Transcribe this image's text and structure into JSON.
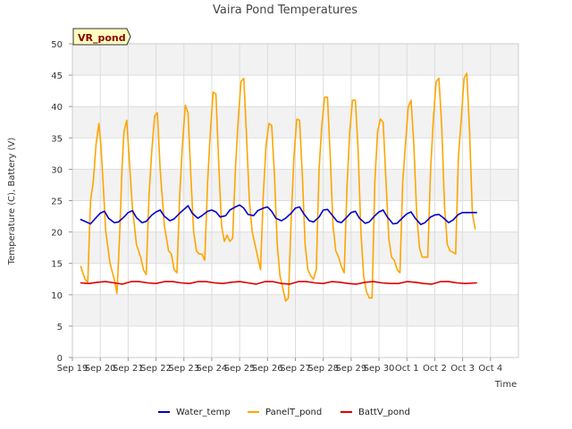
{
  "chart_data": {
    "type": "line",
    "title": "Vaira Pond Temperatures",
    "xlabel": "Time",
    "ylabel": "Temperature (C), Battery (V)",
    "site_label": "VR_pond",
    "ylim": [
      0,
      50
    ],
    "yticks": [
      0,
      5,
      10,
      15,
      20,
      25,
      30,
      35,
      40,
      45,
      50
    ],
    "xlim": [
      0,
      16
    ],
    "xticks": [
      {
        "pos": 0,
        "label": "Sep 19"
      },
      {
        "pos": 1,
        "label": "Sep 20"
      },
      {
        "pos": 2,
        "label": "Sep 21"
      },
      {
        "pos": 3,
        "label": "Sep 22"
      },
      {
        "pos": 4,
        "label": "Sep 23"
      },
      {
        "pos": 5,
        "label": "Sep 24"
      },
      {
        "pos": 6,
        "label": "Sep 25"
      },
      {
        "pos": 7,
        "label": "Sep 26"
      },
      {
        "pos": 8,
        "label": "Sep 27"
      },
      {
        "pos": 9,
        "label": "Sep 28"
      },
      {
        "pos": 10,
        "label": "Sep 29"
      },
      {
        "pos": 11,
        "label": "Sep 30"
      },
      {
        "pos": 12,
        "label": "Oct 1"
      },
      {
        "pos": 13,
        "label": "Oct 2"
      },
      {
        "pos": 14,
        "label": "Oct 3"
      },
      {
        "pos": 15,
        "label": "Oct 4"
      }
    ],
    "grid": true,
    "legend_position": "bottom",
    "series": [
      {
        "name": "Water_temp",
        "color": "#0000cc",
        "x": [
          0.3,
          0.5,
          0.65,
          0.85,
          1.0,
          1.15,
          1.3,
          1.5,
          1.65,
          1.85,
          2.0,
          2.15,
          2.3,
          2.5,
          2.65,
          2.85,
          3.0,
          3.15,
          3.3,
          3.5,
          3.65,
          3.85,
          4.0,
          4.15,
          4.3,
          4.5,
          4.65,
          4.85,
          5.0,
          5.15,
          5.3,
          5.5,
          5.65,
          5.85,
          6.0,
          6.15,
          6.3,
          6.5,
          6.65,
          6.85,
          7.0,
          7.15,
          7.3,
          7.5,
          7.65,
          7.85,
          8.0,
          8.15,
          8.3,
          8.5,
          8.65,
          8.85,
          9.0,
          9.15,
          9.3,
          9.5,
          9.65,
          9.85,
          10.0,
          10.15,
          10.3,
          10.5,
          10.65,
          10.85,
          11.0,
          11.15,
          11.3,
          11.5,
          11.65,
          11.85,
          12.0,
          12.15,
          12.3,
          12.5,
          12.65,
          12.85,
          13.0,
          13.15,
          13.3,
          13.5,
          13.65,
          13.85,
          14.0,
          14.15,
          14.3,
          14.5
        ],
        "y": [
          22.0,
          21.6,
          21.3,
          22.3,
          23.0,
          23.3,
          22.2,
          21.5,
          21.6,
          22.4,
          23.1,
          23.4,
          22.3,
          21.5,
          21.7,
          22.7,
          23.2,
          23.5,
          22.5,
          21.8,
          22.1,
          23.0,
          23.6,
          24.2,
          23.0,
          22.2,
          22.6,
          23.3,
          23.5,
          23.2,
          22.4,
          22.6,
          23.5,
          24.0,
          24.3,
          23.8,
          22.8,
          22.6,
          23.4,
          23.8,
          24.0,
          23.3,
          22.2,
          21.8,
          22.2,
          23.0,
          23.8,
          24.0,
          22.9,
          21.8,
          21.6,
          22.4,
          23.5,
          23.6,
          22.8,
          21.7,
          21.5,
          22.4,
          23.1,
          23.3,
          22.2,
          21.4,
          21.6,
          22.6,
          23.2,
          23.5,
          22.4,
          21.3,
          21.4,
          22.3,
          22.9,
          23.2,
          22.2,
          21.2,
          21.5,
          22.4,
          22.7,
          22.8,
          22.3,
          21.5,
          21.9,
          22.8,
          23.1,
          23.1,
          23.1,
          23.1
        ]
      },
      {
        "name": "PanelT_pond",
        "color": "#ffa500",
        "x": [
          0.3,
          0.45,
          0.55,
          0.65,
          0.75,
          0.85,
          0.95,
          1.02,
          1.1,
          1.2,
          1.35,
          1.5,
          1.6,
          1.7,
          1.78,
          1.85,
          1.95,
          2.05,
          2.15,
          2.3,
          2.45,
          2.55,
          2.65,
          2.75,
          2.85,
          2.95,
          3.05,
          3.15,
          3.3,
          3.45,
          3.55,
          3.65,
          3.75,
          3.85,
          3.95,
          4.05,
          4.15,
          4.25,
          4.35,
          4.45,
          4.55,
          4.65,
          4.75,
          4.85,
          4.95,
          5.05,
          5.15,
          5.25,
          5.35,
          5.45,
          5.55,
          5.65,
          5.75,
          5.85,
          5.95,
          6.05,
          6.15,
          6.25,
          6.35,
          6.45,
          6.55,
          6.65,
          6.75,
          6.85,
          6.95,
          7.05,
          7.15,
          7.25,
          7.35,
          7.45,
          7.55,
          7.65,
          7.75,
          7.85,
          7.95,
          8.05,
          8.15,
          8.25,
          8.35,
          8.45,
          8.55,
          8.65,
          8.75,
          8.85,
          8.95,
          9.05,
          9.15,
          9.25,
          9.35,
          9.45,
          9.55,
          9.65,
          9.75,
          9.85,
          9.95,
          10.05,
          10.15,
          10.25,
          10.35,
          10.45,
          10.55,
          10.65,
          10.75,
          10.85,
          10.95,
          11.05,
          11.15,
          11.25,
          11.35,
          11.45,
          11.55,
          11.65,
          11.75,
          11.85,
          11.95,
          12.05,
          12.15,
          12.25,
          12.35,
          12.45,
          12.55,
          12.65,
          12.75,
          12.85,
          12.95,
          13.05,
          13.15,
          13.25,
          13.35,
          13.45,
          13.55,
          13.65,
          13.75,
          13.85,
          13.95,
          14.05,
          14.15,
          14.25,
          14.35,
          14.45
        ],
        "y": [
          14.5,
          12.5,
          12.0,
          25.0,
          28.0,
          34.0,
          37.3,
          34.0,
          28.0,
          20.0,
          15.0,
          12.5,
          10.2,
          20.0,
          30.0,
          36.0,
          37.8,
          31.0,
          24.0,
          18.0,
          16.0,
          14.0,
          13.2,
          26.0,
          33.0,
          38.5,
          39.0,
          30.0,
          21.0,
          17.0,
          16.5,
          14.0,
          13.5,
          26.0,
          34.0,
          40.2,
          39.0,
          29.0,
          20.0,
          17.0,
          16.5,
          16.5,
          15.5,
          28.0,
          36.0,
          42.3,
          42.0,
          31.0,
          21.0,
          18.5,
          19.5,
          18.5,
          19.0,
          30.0,
          38.0,
          44.0,
          44.5,
          35.0,
          25.0,
          20.0,
          18.0,
          16.0,
          14.0,
          26.0,
          34.0,
          37.3,
          37.0,
          29.0,
          18.0,
          13.0,
          11.0,
          9.0,
          9.5,
          22.0,
          32.0,
          38.0,
          37.8,
          29.0,
          18.0,
          14.0,
          13.0,
          12.5,
          14.0,
          30.0,
          37.0,
          41.5,
          41.5,
          32.0,
          21.0,
          17.0,
          16.0,
          14.5,
          13.5,
          27.0,
          36.0,
          41.0,
          41.0,
          33.0,
          20.0,
          13.0,
          10.5,
          9.5,
          9.5,
          28.0,
          36.0,
          38.0,
          37.5,
          28.0,
          19.0,
          16.0,
          15.5,
          14.0,
          13.5,
          28.0,
          34.0,
          40.0,
          41.0,
          34.0,
          23.0,
          17.5,
          16.0,
          16.0,
          16.0,
          30.0,
          38.0,
          44.0,
          44.5,
          37.0,
          24.0,
          18.0,
          17.0,
          16.8,
          16.5,
          32.0,
          38.0,
          44.5,
          45.3,
          36.0,
          23.0,
          20.5
        ]
      },
      {
        "name": "BattV_pond",
        "color": "#dd0000",
        "x": [
          0.3,
          0.6,
          0.9,
          1.2,
          1.5,
          1.8,
          2.1,
          2.4,
          2.7,
          3.0,
          3.3,
          3.6,
          3.9,
          4.2,
          4.5,
          4.8,
          5.1,
          5.4,
          5.7,
          6.0,
          6.3,
          6.6,
          6.9,
          7.2,
          7.5,
          7.8,
          8.1,
          8.4,
          8.7,
          9.0,
          9.3,
          9.6,
          9.9,
          10.2,
          10.5,
          10.8,
          11.1,
          11.4,
          11.7,
          12.0,
          12.3,
          12.6,
          12.9,
          13.2,
          13.5,
          13.8,
          14.1,
          14.5
        ],
        "y": [
          11.9,
          11.8,
          12.0,
          12.1,
          11.9,
          11.7,
          12.1,
          12.1,
          11.9,
          11.8,
          12.1,
          12.1,
          11.9,
          11.8,
          12.1,
          12.1,
          11.9,
          11.8,
          12.0,
          12.1,
          11.9,
          11.7,
          12.1,
          12.1,
          11.8,
          11.7,
          12.1,
          12.1,
          11.9,
          11.8,
          12.1,
          12.0,
          11.8,
          11.7,
          12.0,
          12.1,
          11.9,
          11.8,
          11.8,
          12.1,
          12.0,
          11.8,
          11.7,
          12.1,
          12.1,
          11.9,
          11.8,
          11.9
        ]
      }
    ]
  }
}
